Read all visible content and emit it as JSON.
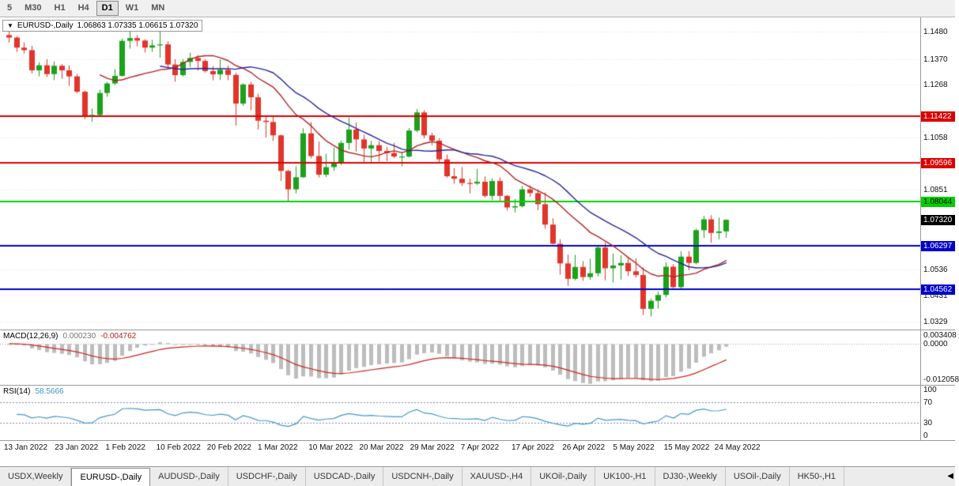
{
  "toolbar": {
    "timeframes": [
      {
        "label": "5",
        "active": false
      },
      {
        "label": "M30",
        "active": false
      },
      {
        "label": "H1",
        "active": false
      },
      {
        "label": "H4",
        "active": false
      },
      {
        "label": "D1",
        "active": true
      },
      {
        "label": "W1",
        "active": false
      },
      {
        "label": "MN",
        "active": false
      }
    ]
  },
  "chart": {
    "symbol_period": "EURUSD-,Daily",
    "ohlc_display": "1.06863 1.07335 1.06615 1.07320"
  },
  "colors": {
    "bull": "#1ca11c",
    "bear": "#e0352b",
    "macd_hist": "#bdbdbd",
    "macd_signal": "#cc2222",
    "rsi_line": "#4298c6",
    "rsi_level": "#8585c2",
    "grid": "#e3e3e3"
  },
  "hlines": [
    {
      "value": 1.11422,
      "color": "#dd0000",
      "width": 2
    },
    {
      "value": 1.09596,
      "color": "#dd0000",
      "width": 2
    },
    {
      "value": 1.08044,
      "color": "#00d200",
      "width": 2
    },
    {
      "value": 1.06297,
      "color": "#0000cc",
      "width": 2
    },
    {
      "value": 1.04562,
      "color": "#0000cc",
      "width": 2
    }
  ],
  "price_axis": {
    "ticks": [
      {
        "label": "1.1480",
        "value": 1.148
      },
      {
        "label": "1.1370",
        "value": 1.137
      },
      {
        "label": "1.1268",
        "value": 1.1268
      },
      {
        "label": "1.1058",
        "value": 1.1058
      },
      {
        "label": "1.0851",
        "value": 1.0851
      },
      {
        "label": "1.0536",
        "value": 1.0536
      },
      {
        "label": "1.0431",
        "value": 1.0431
      },
      {
        "label": "1.0329",
        "value": 1.0329
      }
    ],
    "boxes": [
      {
        "label": "1.11422",
        "value": 1.11422,
        "bg": "#dd0000",
        "fg": "#ffffff"
      },
      {
        "label": "1.09596",
        "value": 1.09596,
        "bg": "#dd0000",
        "fg": "#ffffff"
      },
      {
        "label": "1.08044",
        "value": 1.08044,
        "bg": "#00d200",
        "fg": "#000000"
      },
      {
        "label": "1.07320",
        "value": 1.0732,
        "bg": "#000000",
        "fg": "#ffffff"
      },
      {
        "label": "1.06297",
        "value": 1.06297,
        "bg": "#0000cc",
        "fg": "#ffffff"
      },
      {
        "label": "1.04562",
        "value": 1.04562,
        "bg": "#0000cc",
        "fg": "#ffffff"
      }
    ]
  },
  "macd": {
    "name": "MACD(12,26,9)",
    "main_value": "0.000230",
    "signal_value": "-0.004762",
    "axis_labels": [
      "0.003408",
      "0.0000",
      "-0.012058"
    ],
    "range": [
      -0.0128,
      0.0042
    ]
  },
  "rsi": {
    "name": "RSI(14)",
    "value": "58.5666",
    "axis_values": [
      100,
      70,
      30,
      0
    ],
    "levels": [
      70,
      30
    ]
  },
  "date_axis": {
    "labels": [
      "13 Jan 2022",
      "23 Jan 2022",
      "1 Feb 2022",
      "10 Feb 2022",
      "20 Feb 2022",
      "1 Mar 2022",
      "10 Mar 2022",
      "20 Mar 2022",
      "29 Mar 2022",
      "7 Apr 2022",
      "17 Apr 2022",
      "26 Apr 2022",
      "5 May 2022",
      "15 May 2022",
      "24 May 2022"
    ]
  },
  "tabs": {
    "items": [
      {
        "label": "USDX,Weekly",
        "active": false
      },
      {
        "label": "EURUSD-,Daily",
        "active": true
      },
      {
        "label": "AUDUSD-,Daily",
        "active": false
      },
      {
        "label": "USDCHF-,Daily",
        "active": false
      },
      {
        "label": "USDCAD-,Daily",
        "active": false
      },
      {
        "label": "USDCNH-,Daily",
        "active": false
      },
      {
        "label": "XAUUSD-,H4",
        "active": false
      },
      {
        "label": "UKOil-,Daily",
        "active": false
      },
      {
        "label": "UK100-,H1",
        "active": false
      },
      {
        "label": "DJ30-,Weekly",
        "active": false
      },
      {
        "label": "USOil-,Daily",
        "active": false
      },
      {
        "label": "HK50-,H1",
        "active": false
      }
    ],
    "scroll_arrow": "◀"
  },
  "chart_data": {
    "type": "candlestick",
    "symbol": "EURUSD-",
    "period": "Daily",
    "price_range": [
      1.03,
      1.1535
    ],
    "moving_averages": [
      {
        "period": 13,
        "color": "#b22222"
      },
      {
        "period": 21,
        "color": "#26269e"
      }
    ],
    "candles": [
      [
        1.1465,
        1.1483,
        1.1435,
        1.1455
      ],
      [
        1.1455,
        1.1461,
        1.1398,
        1.1415
      ],
      [
        1.1415,
        1.1436,
        1.1392,
        1.1405
      ],
      [
        1.1405,
        1.1422,
        1.1313,
        1.1325
      ],
      [
        1.1325,
        1.1357,
        1.1301,
        1.1345
      ],
      [
        1.1345,
        1.1369,
        1.1298,
        1.131
      ],
      [
        1.131,
        1.136,
        1.1286,
        1.1343
      ],
      [
        1.1343,
        1.135,
        1.1291,
        1.1325
      ],
      [
        1.1325,
        1.1345,
        1.1263,
        1.1301
      ],
      [
        1.1301,
        1.131,
        1.1235,
        1.124
      ],
      [
        1.124,
        1.1244,
        1.1131,
        1.1145
      ],
      [
        1.1145,
        1.1173,
        1.1121,
        1.1148
      ],
      [
        1.1148,
        1.1248,
        1.114,
        1.1235
      ],
      [
        1.1235,
        1.1279,
        1.122,
        1.1273
      ],
      [
        1.1273,
        1.133,
        1.1267,
        1.1303
      ],
      [
        1.1303,
        1.1451,
        1.13,
        1.1442
      ],
      [
        1.1442,
        1.1483,
        1.1411,
        1.1453
      ],
      [
        1.1453,
        1.1465,
        1.142,
        1.1443
      ],
      [
        1.1443,
        1.1449,
        1.1396,
        1.1415
      ],
      [
        1.1415,
        1.1446,
        1.1398,
        1.1424
      ],
      [
        1.1424,
        1.1495,
        1.1375,
        1.1428
      ],
      [
        1.1428,
        1.144,
        1.1329,
        1.1348
      ],
      [
        1.1348,
        1.1369,
        1.128,
        1.1306
      ],
      [
        1.1306,
        1.137,
        1.13,
        1.1358
      ],
      [
        1.1358,
        1.1395,
        1.1338,
        1.1374
      ],
      [
        1.1374,
        1.1385,
        1.1324,
        1.1362
      ],
      [
        1.1362,
        1.1369,
        1.1316,
        1.1322
      ],
      [
        1.1322,
        1.1342,
        1.1285,
        1.1309
      ],
      [
        1.1309,
        1.1368,
        1.1287,
        1.1327
      ],
      [
        1.1327,
        1.1344,
        1.1286,
        1.1307
      ],
      [
        1.1307,
        1.1315,
        1.1106,
        1.1193
      ],
      [
        1.1193,
        1.1274,
        1.1184,
        1.1269
      ],
      [
        1.1269,
        1.1279,
        1.1166,
        1.1218
      ],
      [
        1.1218,
        1.1232,
        1.109,
        1.1125
      ],
      [
        1.1125,
        1.1145,
        1.1058,
        1.112
      ],
      [
        1.112,
        1.1141,
        1.1045,
        1.1067
      ],
      [
        1.1067,
        1.107,
        1.0886,
        1.0926
      ],
      [
        1.0926,
        1.0931,
        1.0806,
        1.0853
      ],
      [
        1.0853,
        1.0945,
        1.0837,
        1.0901
      ],
      [
        1.0901,
        1.1095,
        1.0899,
        1.1075
      ],
      [
        1.1075,
        1.112,
        1.0976,
        1.0985
      ],
      [
        1.0985,
        1.1042,
        1.09,
        1.0911
      ],
      [
        1.0911,
        1.0994,
        1.0902,
        1.0941
      ],
      [
        1.0941,
        1.1019,
        1.0926,
        1.0955
      ],
      [
        1.0955,
        1.1046,
        1.0949,
        1.1037
      ],
      [
        1.1037,
        1.1138,
        1.101,
        1.109
      ],
      [
        1.109,
        1.1119,
        1.1003,
        1.1051
      ],
      [
        1.1051,
        1.1069,
        1.0961,
        1.1015
      ],
      [
        1.1015,
        1.1046,
        1.0961,
        1.1028
      ],
      [
        1.1028,
        1.1044,
        1.0963,
        1.1005
      ],
      [
        1.1005,
        1.1021,
        1.0965,
        1.0997
      ],
      [
        1.0997,
        1.1038,
        1.0977,
        1.0983
      ],
      [
        1.0983,
        1.1,
        1.0944,
        1.0983
      ],
      [
        1.0983,
        1.1096,
        1.0979,
        1.1086
      ],
      [
        1.1086,
        1.1171,
        1.108,
        1.1158
      ],
      [
        1.1158,
        1.1167,
        1.1055,
        1.1067
      ],
      [
        1.1067,
        1.1077,
        1.1028,
        1.1046
      ],
      [
        1.1046,
        1.1056,
        1.0961,
        1.0972
      ],
      [
        1.0972,
        1.0991,
        1.0899,
        1.0905
      ],
      [
        1.0905,
        1.0937,
        1.0875,
        1.0895
      ],
      [
        1.0895,
        1.0941,
        1.0866,
        1.0878
      ],
      [
        1.0878,
        1.0895,
        1.0837,
        1.0876
      ],
      [
        1.0876,
        1.0934,
        1.087,
        1.0883
      ],
      [
        1.0883,
        1.0904,
        1.0821,
        1.0827
      ],
      [
        1.0827,
        1.0896,
        1.081,
        1.0886
      ],
      [
        1.0886,
        1.09,
        1.0808,
        1.0827
      ],
      [
        1.0827,
        1.0831,
        1.0769,
        1.0781
      ],
      [
        1.0781,
        1.0815,
        1.0761,
        1.0786
      ],
      [
        1.0786,
        1.0867,
        1.0781,
        1.0853
      ],
      [
        1.0853,
        1.0868,
        1.0823,
        1.0838
      ],
      [
        1.0838,
        1.0852,
        1.077,
        1.0794
      ],
      [
        1.0794,
        1.084,
        1.0697,
        1.0713
      ],
      [
        1.0713,
        1.0738,
        1.0635,
        1.0637
      ],
      [
        1.0637,
        1.0655,
        1.0514,
        1.0559
      ],
      [
        1.0559,
        1.0594,
        1.047,
        1.0498
      ],
      [
        1.0498,
        1.0593,
        1.0492,
        1.0545
      ],
      [
        1.0545,
        1.0568,
        1.049,
        1.0505
      ],
      [
        1.0505,
        1.0578,
        1.0494,
        1.052
      ],
      [
        1.052,
        1.0632,
        1.0508,
        1.0622
      ],
      [
        1.0622,
        1.0642,
        1.0492,
        1.054
      ],
      [
        1.054,
        1.0599,
        1.0483,
        1.0551
      ],
      [
        1.0551,
        1.0592,
        1.0495,
        1.0561
      ],
      [
        1.0561,
        1.0584,
        1.0509,
        1.0528
      ],
      [
        1.0528,
        1.0579,
        1.0503,
        1.0513
      ],
      [
        1.0513,
        1.0543,
        1.0354,
        1.0379
      ],
      [
        1.0379,
        1.042,
        1.0348,
        1.0411
      ],
      [
        1.0411,
        1.0447,
        1.038,
        1.0434
      ],
      [
        1.0434,
        1.0564,
        1.0424,
        1.0546
      ],
      [
        1.0546,
        1.0556,
        1.0461,
        1.0465
      ],
      [
        1.0465,
        1.0607,
        1.0459,
        1.0586
      ],
      [
        1.0586,
        1.0608,
        1.0532,
        1.0561
      ],
      [
        1.0561,
        1.0697,
        1.0556,
        1.0691
      ],
      [
        1.0691,
        1.0748,
        1.066,
        1.0734
      ],
      [
        1.0734,
        1.075,
        1.0641,
        1.068
      ],
      [
        1.068,
        1.0741,
        1.0655,
        1.0686
      ],
      [
        1.06863,
        1.07335,
        1.06615,
        1.0732
      ]
    ]
  }
}
